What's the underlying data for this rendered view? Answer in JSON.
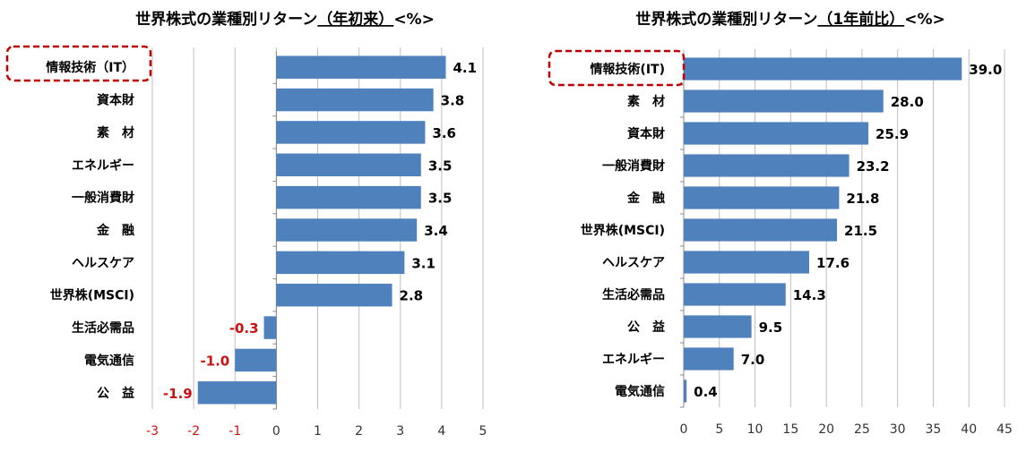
{
  "colors": {
    "bar": "#4f81bd",
    "negative": "#cc1111",
    "grid": "#bfbfbf",
    "highlight": "#c00000"
  },
  "chart_data": [
    {
      "type": "bar",
      "orientation": "horizontal",
      "title": "世界株式の業種別リターン（年初来）<%>",
      "title_main": "世界株式の業種別リターン",
      "title_underlined": "（年初来）",
      "title_unit": "<%>",
      "categories": [
        "情報技術（IT）",
        "資本財",
        "素　材",
        "エネルギー",
        "一般消費財",
        "金　融",
        "ヘルスケア",
        "世界株(MSCI)",
        "生活必需品",
        "電気通信",
        "公　益"
      ],
      "values": [
        4.1,
        3.8,
        3.6,
        3.5,
        3.5,
        3.4,
        3.1,
        2.8,
        -0.3,
        -1.0,
        -1.9
      ],
      "value_labels": [
        "4.1",
        "3.8",
        "3.6",
        "3.5",
        "3.5",
        "3.4",
        "3.1",
        "2.8",
        "-0.3",
        "-1.0",
        "-1.9"
      ],
      "highlight": "情報技術（IT）",
      "xlim": [
        -3,
        5
      ],
      "xticks": [
        "-3",
        "-2",
        "-1",
        "0",
        "1",
        "2",
        "3",
        "4",
        "5"
      ],
      "grid": true
    },
    {
      "type": "bar",
      "orientation": "horizontal",
      "title": "世界株式の業種別リターン（1年前比）<%>",
      "title_main": "世界株式の業種別リターン",
      "title_underlined": "（1年前比）",
      "title_unit": "<%>",
      "categories": [
        "情報技術(IT)",
        "素　材",
        "資本財",
        "一般消費財",
        "金　融",
        "世界株(MSCI)",
        "ヘルスケア",
        "生活必需品",
        "公　益",
        "エネルギー",
        "電気通信"
      ],
      "values": [
        39.0,
        28.0,
        25.9,
        23.2,
        21.8,
        21.5,
        17.6,
        14.3,
        9.5,
        7.0,
        0.4
      ],
      "value_labels": [
        "39.0",
        "28.0",
        "25.9",
        "23.2",
        "21.8",
        "21.5",
        "17.6",
        "14.3",
        "9.5",
        "7.0",
        "0.4"
      ],
      "highlight": "情報技術(IT)",
      "xlim": [
        0,
        45
      ],
      "xticks": [
        "0",
        "5",
        "10",
        "15",
        "20",
        "25",
        "30",
        "35",
        "40",
        "45"
      ],
      "grid": true
    }
  ]
}
